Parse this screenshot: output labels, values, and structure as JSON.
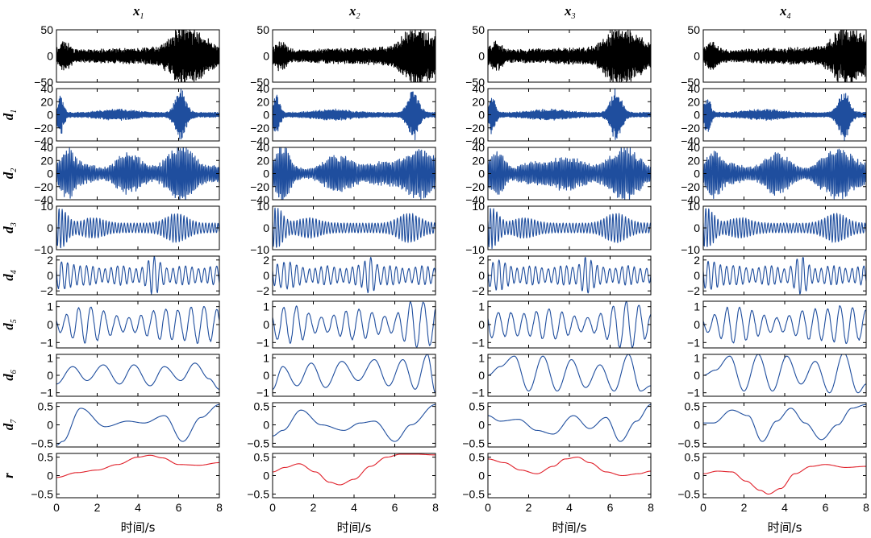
{
  "colors": {
    "signal": "#000000",
    "imf": "#1f4e9e",
    "residual": "#e0202a"
  },
  "figure": {
    "x_axis_label": "时间/s",
    "column_titles": [
      {
        "main": "x",
        "sub": "1"
      },
      {
        "main": "x",
        "sub": "2"
      },
      {
        "main": "x",
        "sub": "3"
      },
      {
        "main": "x",
        "sub": "4"
      }
    ],
    "row_labels": [
      {
        "main": "",
        "sub": ""
      },
      {
        "main": "d",
        "sub": "1"
      },
      {
        "main": "d",
        "sub": "2"
      },
      {
        "main": "d",
        "sub": "3"
      },
      {
        "main": "d",
        "sub": "4"
      },
      {
        "main": "d",
        "sub": "5"
      },
      {
        "main": "d",
        "sub": "6"
      },
      {
        "main": "d",
        "sub": "7"
      },
      {
        "main": "r",
        "sub": ""
      }
    ]
  },
  "chart_data": {
    "type": "line",
    "layout": "4 columns x 9 rows of stacked subplots",
    "x": {
      "range": [
        0,
        8
      ],
      "ticks": [
        "0",
        "2",
        "4",
        "6",
        "8"
      ],
      "label": "时间/s"
    },
    "rows": [
      {
        "name": "x",
        "ylim": [
          -50,
          50
        ],
        "yticks": [
          "50",
          "0",
          "−50"
        ],
        "color": "signal"
      },
      {
        "name": "d1",
        "ylim": [
          -40,
          40
        ],
        "yticks": [
          "40",
          "20",
          "0",
          "−20",
          "−40"
        ],
        "color": "imf"
      },
      {
        "name": "d2",
        "ylim": [
          -40,
          40
        ],
        "yticks": [
          "40",
          "20",
          "0",
          "−20",
          "−40"
        ],
        "color": "imf"
      },
      {
        "name": "d3",
        "ylim": [
          -10,
          10
        ],
        "yticks": [
          "10",
          "0",
          "−10"
        ],
        "color": "imf"
      },
      {
        "name": "d4",
        "ylim": [
          -2.5,
          2.5
        ],
        "yticks": [
          "2",
          "0",
          "−2"
        ],
        "color": "imf"
      },
      {
        "name": "d5",
        "ylim": [
          -1.3,
          1.3
        ],
        "yticks": [
          "1",
          "0",
          "−1"
        ],
        "color": "imf"
      },
      {
        "name": "d6",
        "ylim": [
          -1.2,
          1.2
        ],
        "yticks": [
          "1",
          "0",
          "−1"
        ],
        "color": "imf"
      },
      {
        "name": "d7",
        "ylim": [
          -0.6,
          0.6
        ],
        "yticks": [
          "0.5",
          "0",
          "−0.5"
        ],
        "color": "imf"
      },
      {
        "name": "r",
        "ylim": [
          -0.6,
          0.6
        ],
        "yticks": [
          "0.5",
          "0",
          "−0.5"
        ],
        "color": "residual"
      }
    ],
    "series": [
      {
        "column": "x1",
        "d6": {
          "t": [
            0,
            0.8,
            1.5,
            2.3,
            3.1,
            3.8,
            4.6,
            5.3,
            6.1,
            6.8,
            7.5,
            8.0
          ],
          "v": [
            -0.5,
            0.5,
            -0.3,
            0.6,
            -0.5,
            0.6,
            -0.6,
            0.5,
            -0.3,
            0.7,
            -0.2,
            -0.8
          ]
        },
        "d7": {
          "t": [
            0,
            0.3,
            1.2,
            2.4,
            3.5,
            4.3,
            5.3,
            6.2,
            7.1,
            8.0
          ],
          "v": [
            -0.55,
            -0.45,
            0.45,
            -0.05,
            0.1,
            0.05,
            0.25,
            -0.45,
            0.2,
            0.55
          ]
        },
        "r": {
          "t": [
            0,
            1.0,
            2.0,
            3.0,
            4.0,
            4.6,
            5.2,
            6.0,
            7.0,
            8.0
          ],
          "v": [
            -0.05,
            0.08,
            0.15,
            0.3,
            0.5,
            0.55,
            0.48,
            0.3,
            0.28,
            0.35
          ]
        }
      },
      {
        "column": "x2",
        "d6": {
          "t": [
            0,
            0.5,
            1.2,
            1.9,
            2.6,
            3.4,
            4.2,
            5.0,
            5.7,
            6.4,
            7.0,
            7.6,
            8.0
          ],
          "v": [
            -0.8,
            0.5,
            -0.6,
            0.7,
            -0.7,
            0.8,
            -0.3,
            0.9,
            -0.6,
            0.9,
            -0.8,
            1.2,
            -1.0
          ]
        },
        "d7": {
          "t": [
            0,
            0.5,
            1.4,
            2.4,
            3.5,
            4.3,
            5.0,
            6.0,
            6.8,
            8.0
          ],
          "v": [
            -0.3,
            -0.15,
            0.4,
            0.0,
            -0.15,
            0.05,
            0.1,
            -0.45,
            0.0,
            0.55
          ]
        },
        "r": {
          "t": [
            0,
            0.6,
            1.3,
            2.1,
            2.8,
            3.3,
            4.0,
            4.8,
            5.6,
            6.3,
            7.0,
            8.0
          ],
          "v": [
            0.1,
            0.22,
            0.32,
            0.1,
            -0.18,
            -0.25,
            -0.1,
            0.25,
            0.5,
            0.58,
            0.58,
            0.56
          ]
        }
      },
      {
        "column": "x3",
        "d6": {
          "t": [
            0,
            0.6,
            1.3,
            2.0,
            2.7,
            3.4,
            4.1,
            4.8,
            5.5,
            6.2,
            6.9,
            7.5,
            8.0
          ],
          "v": [
            0.0,
            0.5,
            1.1,
            -0.9,
            1.1,
            -0.9,
            0.9,
            -0.7,
            0.6,
            -0.9,
            1.2,
            -0.9,
            -0.6
          ]
        },
        "d7": {
          "t": [
            0,
            0.6,
            1.5,
            2.4,
            3.2,
            4.2,
            5.0,
            5.8,
            6.5,
            7.3,
            8.0
          ],
          "v": [
            0.25,
            0.1,
            0.15,
            -0.15,
            -0.25,
            0.25,
            -0.1,
            0.2,
            -0.45,
            0.1,
            0.55
          ]
        },
        "r": {
          "t": [
            0,
            0.8,
            1.6,
            2.4,
            3.2,
            3.8,
            4.4,
            5.0,
            5.8,
            6.6,
            7.4,
            8.0
          ],
          "v": [
            0.45,
            0.35,
            0.15,
            0.05,
            0.25,
            0.45,
            0.5,
            0.35,
            0.1,
            0.0,
            0.05,
            0.12
          ]
        }
      },
      {
        "column": "x4",
        "d6": {
          "t": [
            0,
            0.6,
            1.3,
            2.0,
            2.7,
            3.4,
            4.1,
            4.8,
            5.5,
            6.2,
            6.9,
            7.6,
            8.0
          ],
          "v": [
            0.0,
            0.3,
            1.1,
            -0.9,
            1.2,
            -0.9,
            1.1,
            -0.5,
            0.8,
            -1.0,
            1.3,
            -1.0,
            -0.5
          ]
        },
        "d7": {
          "t": [
            0,
            0.5,
            1.4,
            2.2,
            2.9,
            3.6,
            4.3,
            5.0,
            5.8,
            6.6,
            7.3,
            8.0
          ],
          "v": [
            0.05,
            0.05,
            0.4,
            0.25,
            -0.45,
            0.1,
            0.45,
            0.05,
            -0.4,
            0.0,
            0.45,
            0.55
          ]
        },
        "r": {
          "t": [
            0,
            0.7,
            1.4,
            2.1,
            2.8,
            3.2,
            3.8,
            4.5,
            5.3,
            6.0,
            7.0,
            8.0
          ],
          "v": [
            0.05,
            0.12,
            0.1,
            -0.15,
            -0.4,
            -0.5,
            -0.35,
            0.05,
            0.25,
            0.3,
            0.22,
            0.25
          ]
        }
      }
    ],
    "high_frequency_rows": "x, d1, d2, d3, d4, d5 are dense oscillations with bursts near t≈1 and t≈6–7"
  }
}
